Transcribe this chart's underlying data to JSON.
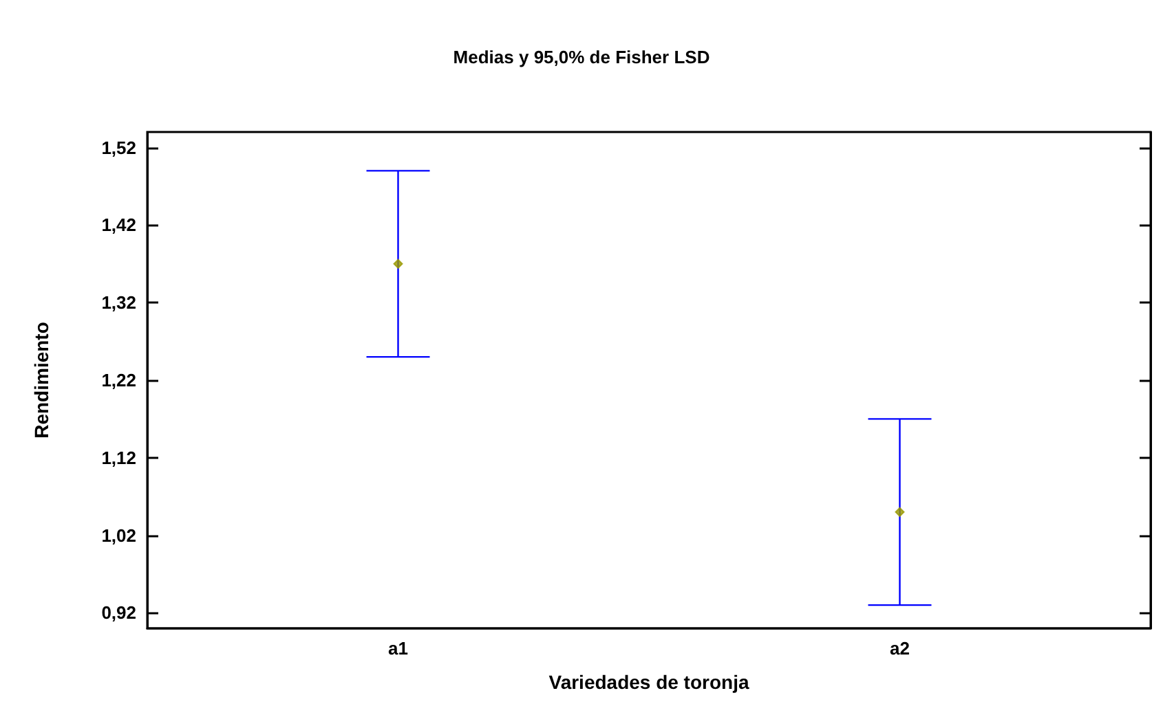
{
  "chart_data": {
    "type": "scatter",
    "title": "Medias y 95,0% de Fisher LSD",
    "xlabel": "Variedades de toronja",
    "ylabel": "Rendimiento",
    "categories": [
      "a1",
      "a2"
    ],
    "series": [
      {
        "color": "#999900",
        "values": [
          1.37,
          1.05
        ],
        "errors": [
          [
            1.25,
            1.49
          ],
          [
            0.93,
            1.17
          ]
        ]
      }
    ],
    "ylim": [
      0.9,
      1.54
    ],
    "yticks": [
      {
        "value": 0.92,
        "label": "0,92"
      },
      {
        "value": 1.02,
        "label": "1,02"
      },
      {
        "value": 1.12,
        "label": "1,12"
      },
      {
        "value": 1.22,
        "label": "1,22"
      },
      {
        "value": 1.32,
        "label": "1,32"
      },
      {
        "value": 1.42,
        "label": "1,42"
      },
      {
        "value": 1.52,
        "label": "1,52"
      }
    ],
    "marker": "diamond",
    "grid": false
  }
}
